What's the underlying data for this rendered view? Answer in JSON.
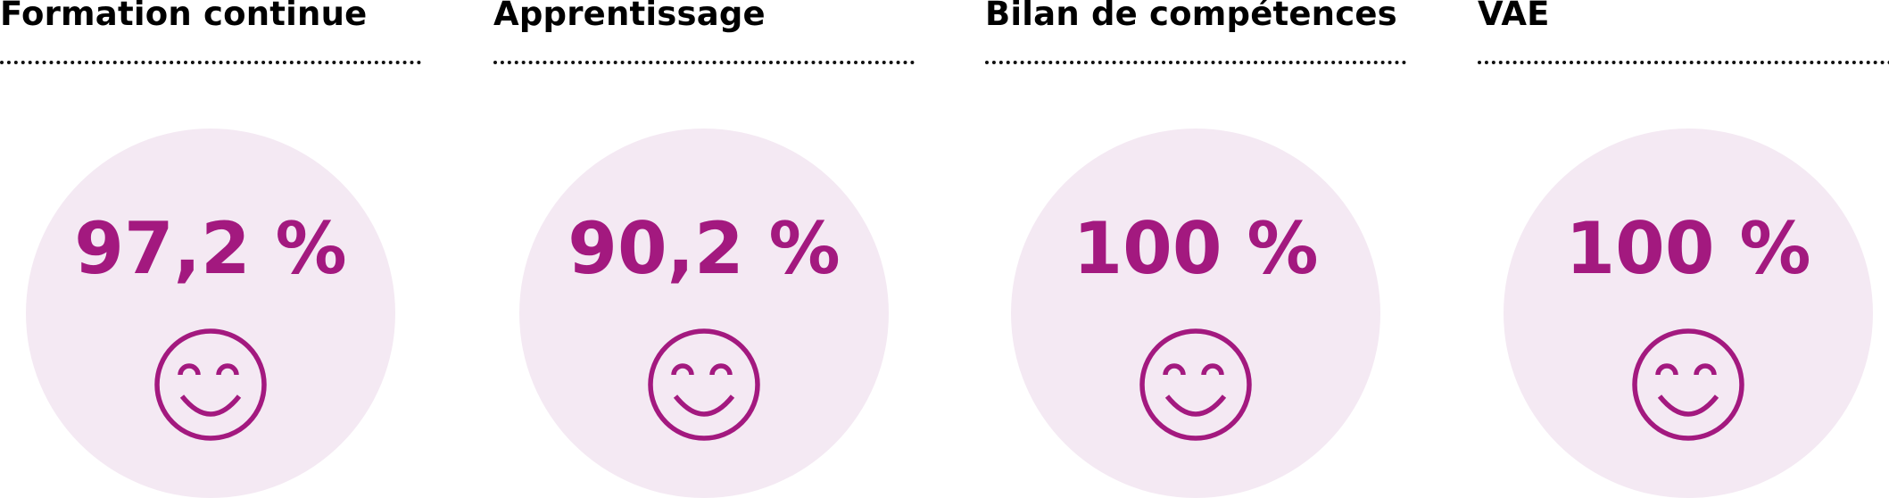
{
  "colors": {
    "accent": "#A3197F",
    "circle_bg": "#F4E9F3",
    "text": "#000000"
  },
  "items": [
    {
      "title": "Formation continue",
      "value": "97,2 %",
      "icon": "smiley-icon"
    },
    {
      "title": "Apprentissage",
      "value": "90,2 %",
      "icon": "smiley-icon"
    },
    {
      "title": "Bilan de compétences",
      "value": "100 %",
      "icon": "smiley-icon"
    },
    {
      "title": "VAE",
      "value": "100 %",
      "icon": "smiley-icon"
    }
  ]
}
